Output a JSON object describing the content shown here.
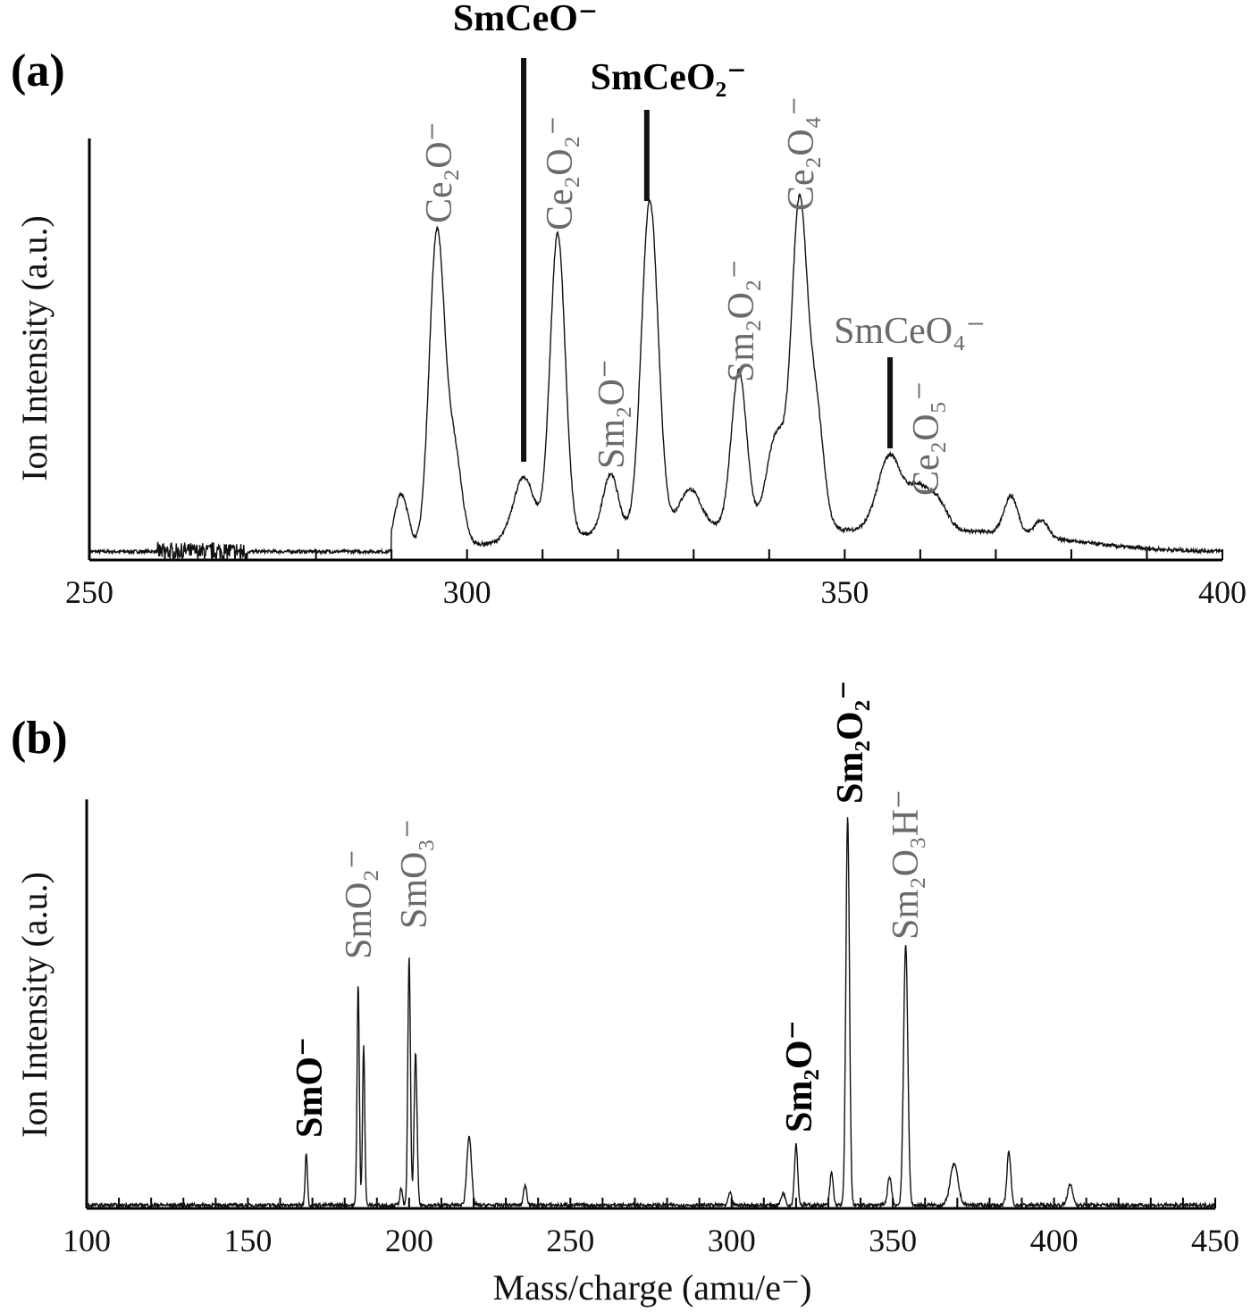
{
  "chart_data": [
    {
      "type": "line",
      "panel_label": "(a)",
      "ylabel": "Ion Intensity (a.u.)",
      "xlabel": "",
      "xlim": [
        250,
        400
      ],
      "ylim": [
        0,
        100
      ],
      "xticks": [
        250,
        300,
        350,
        400
      ],
      "minor_tick_step": 10,
      "grid": false,
      "signal_start": 290,
      "baseline": 2,
      "peaks": [
        {
          "x": 291.3,
          "y": 13,
          "w": 0.9
        },
        {
          "x": 296,
          "y": 74,
          "w": 1.0
        },
        {
          "x": 298.3,
          "y": 22,
          "w": 1.0
        },
        {
          "x": 307.5,
          "y": 15,
          "w": 1.4
        },
        {
          "x": 312,
          "y": 72,
          "w": 1.0
        },
        {
          "x": 319,
          "y": 14,
          "w": 1.0
        },
        {
          "x": 324.2,
          "y": 78,
          "w": 1.1
        },
        {
          "x": 329.5,
          "y": 9,
          "w": 1.4
        },
        {
          "x": 336,
          "y": 37,
          "w": 1.0
        },
        {
          "x": 341,
          "y": 22,
          "w": 1.3
        },
        {
          "x": 344,
          "y": 75,
          "w": 1.0
        },
        {
          "x": 346.2,
          "y": 28,
          "w": 1.0
        },
        {
          "x": 356,
          "y": 18,
          "w": 1.6
        },
        {
          "x": 359.5,
          "y": 8,
          "w": 1.2
        },
        {
          "x": 362,
          "y": 8,
          "w": 1.4
        },
        {
          "x": 372,
          "y": 9,
          "w": 0.9
        },
        {
          "x": 376,
          "y": 4,
          "w": 0.9
        }
      ],
      "markers": [
        {
          "label": "SmCeO⁻",
          "x": 307.5,
          "style": "bold"
        },
        {
          "label": "SmCeO₂⁻",
          "x": 323.8,
          "style": "bold"
        },
        {
          "label": "SmCeO₄⁻",
          "x": 356.0,
          "style": "gray"
        }
      ],
      "annotations": [
        {
          "label": "Ce₂O⁻",
          "x": 296
        },
        {
          "label": "Ce₂O₂⁻",
          "x": 312
        },
        {
          "label": "Sm₂O⁻",
          "x": 319
        },
        {
          "label": "Sm₂O₂⁻",
          "x": 336
        },
        {
          "label": "Ce₂O₄⁻",
          "x": 344
        },
        {
          "label": "Ce₂O₅⁻",
          "x": 361
        }
      ]
    },
    {
      "type": "line",
      "panel_label": "(b)",
      "ylabel": "Ion Intensity (a.u.)",
      "xlabel": "Mass/charge (amu/e⁻)",
      "xlim": [
        100,
        450
      ],
      "ylim": [
        0,
        100
      ],
      "xticks": [
        100,
        150,
        200,
        250,
        300,
        350,
        400,
        450
      ],
      "minor_tick_step": 10,
      "grid": false,
      "signal_start": 100,
      "baseline": 0.8,
      "peaks": [
        {
          "x": 168.1,
          "y": 13,
          "w": 0.35
        },
        {
          "x": 184.2,
          "y": 54,
          "w": 0.35
        },
        {
          "x": 185.9,
          "y": 39,
          "w": 0.35
        },
        {
          "x": 197.5,
          "y": 4,
          "w": 0.4
        },
        {
          "x": 200.0,
          "y": 61,
          "w": 0.4
        },
        {
          "x": 202.0,
          "y": 37,
          "w": 0.45
        },
        {
          "x": 218.6,
          "y": 17,
          "w": 0.7
        },
        {
          "x": 236.0,
          "y": 5,
          "w": 0.5
        },
        {
          "x": 299.5,
          "y": 3,
          "w": 0.5
        },
        {
          "x": 316.0,
          "y": 3,
          "w": 0.6
        },
        {
          "x": 320.0,
          "y": 15,
          "w": 0.5
        },
        {
          "x": 331.0,
          "y": 8,
          "w": 0.5
        },
        {
          "x": 336.0,
          "y": 95,
          "w": 0.55
        },
        {
          "x": 349.0,
          "y": 7,
          "w": 0.6
        },
        {
          "x": 354.0,
          "y": 64,
          "w": 0.65
        },
        {
          "x": 369.0,
          "y": 10,
          "w": 1.2
        },
        {
          "x": 386.0,
          "y": 13,
          "w": 0.6
        },
        {
          "x": 405.0,
          "y": 5,
          "w": 0.8
        }
      ],
      "annotations": [
        {
          "label": "SmO⁻",
          "x": 168,
          "style": "bold"
        },
        {
          "label": "SmO₂⁻",
          "x": 184,
          "style": "gray"
        },
        {
          "label": "SmO₃⁻",
          "x": 200,
          "style": "gray"
        },
        {
          "label": "Sm₂O⁻",
          "x": 320,
          "style": "bold"
        },
        {
          "label": "Sm₂O₂⁻",
          "x": 336,
          "style": "bold"
        },
        {
          "label": "Sm₂O₃H⁻",
          "x": 354,
          "style": "gray"
        }
      ]
    }
  ]
}
